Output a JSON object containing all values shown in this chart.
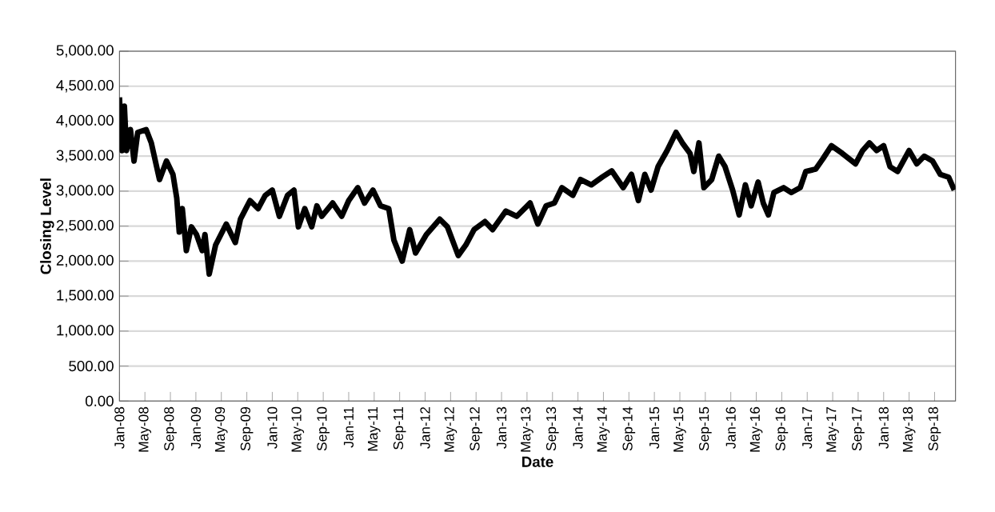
{
  "chart_data": {
    "type": "line",
    "xlabel": "Date",
    "ylabel": "Closing Level",
    "grid": "y",
    "xlim": [
      "2008-01-01",
      "2018-12-10"
    ],
    "xticks": [
      {
        "value": "2008-01",
        "label": "Jan-08"
      },
      {
        "value": "2008-05",
        "label": "May-08"
      },
      {
        "value": "2008-09",
        "label": "Sep-08"
      },
      {
        "value": "2009-01",
        "label": "Jan-09"
      },
      {
        "value": "2009-05",
        "label": "May-09"
      },
      {
        "value": "2009-09",
        "label": "Sep-09"
      },
      {
        "value": "2010-01",
        "label": "Jan-10"
      },
      {
        "value": "2010-05",
        "label": "May-10"
      },
      {
        "value": "2010-09",
        "label": "Sep-10"
      },
      {
        "value": "2011-01",
        "label": "Jan-11"
      },
      {
        "value": "2011-05",
        "label": "May-11"
      },
      {
        "value": "2011-09",
        "label": "Sep-11"
      },
      {
        "value": "2012-01",
        "label": "Jan-12"
      },
      {
        "value": "2012-05",
        "label": "May-12"
      },
      {
        "value": "2012-09",
        "label": "Sep-12"
      },
      {
        "value": "2013-01",
        "label": "Jan-13"
      },
      {
        "value": "2013-05",
        "label": "May-13"
      },
      {
        "value": "2013-09",
        "label": "Sep-13"
      },
      {
        "value": "2014-01",
        "label": "Jan-14"
      },
      {
        "value": "2014-05",
        "label": "May-14"
      },
      {
        "value": "2014-09",
        "label": "Sep-14"
      },
      {
        "value": "2015-01",
        "label": "Jan-15"
      },
      {
        "value": "2015-05",
        "label": "May-15"
      },
      {
        "value": "2015-09",
        "label": "Sep-15"
      },
      {
        "value": "2016-01",
        "label": "Jan-16"
      },
      {
        "value": "2016-05",
        "label": "May-16"
      },
      {
        "value": "2016-09",
        "label": "Sep-16"
      },
      {
        "value": "2017-01",
        "label": "Jan-17"
      },
      {
        "value": "2017-05",
        "label": "May-17"
      },
      {
        "value": "2017-09",
        "label": "Sep-17"
      },
      {
        "value": "2018-01",
        "label": "Jan-18"
      },
      {
        "value": "2018-05",
        "label": "May-18"
      },
      {
        "value": "2018-09",
        "label": "Sep-18"
      }
    ],
    "ylim": [
      0,
      5000
    ],
    "yticks": [
      {
        "value": 0,
        "label": "0.00"
      },
      {
        "value": 500,
        "label": "500.00"
      },
      {
        "value": 1000,
        "label": "1,000.00"
      },
      {
        "value": 1500,
        "label": "1,500.00"
      },
      {
        "value": 2000,
        "label": "2,000.00"
      },
      {
        "value": 2500,
        "label": "2,500.00"
      },
      {
        "value": 3000,
        "label": "3,000.00"
      },
      {
        "value": 3500,
        "label": "3,500.00"
      },
      {
        "value": 4000,
        "label": "4,000.00"
      },
      {
        "value": 4500,
        "label": "4,500.00"
      },
      {
        "value": 5000,
        "label": "5,000.00"
      }
    ],
    "series": [
      {
        "color": "#000000",
        "x": [
          "2008-01-01",
          "2008-01-13",
          "2008-01-25",
          "2008-02-04",
          "2008-02-22",
          "2008-03-10",
          "2008-03-28",
          "2008-05-07",
          "2008-06-01",
          "2008-07-10",
          "2008-08-13",
          "2008-09-13",
          "2008-10-01",
          "2008-10-13",
          "2008-10-28",
          "2008-11-16",
          "2008-12-10",
          "2009-01-04",
          "2009-02-01",
          "2009-02-13",
          "2009-03-04",
          "2009-04-04",
          "2009-05-25",
          "2009-07-07",
          "2009-08-01",
          "2009-09-16",
          "2009-10-25",
          "2009-11-28",
          "2010-01-01",
          "2010-02-04",
          "2010-03-13",
          "2010-04-13",
          "2010-05-04",
          "2010-06-04",
          "2010-07-07",
          "2010-08-01",
          "2010-08-25",
          "2010-10-16",
          "2010-11-28",
          "2011-01-01",
          "2011-02-13",
          "2011-03-16",
          "2011-04-25",
          "2011-06-01",
          "2011-07-10",
          "2011-08-04",
          "2011-09-13",
          "2011-10-19",
          "2011-11-16",
          "2012-01-07",
          "2012-03-10",
          "2012-04-16",
          "2012-06-07",
          "2012-07-13",
          "2012-08-22",
          "2012-10-13",
          "2012-11-19",
          "2013-01-22",
          "2013-03-13",
          "2013-05-16",
          "2013-06-22",
          "2013-08-01",
          "2013-09-10",
          "2013-10-16",
          "2013-12-07",
          "2014-01-13",
          "2014-03-04",
          "2014-04-25",
          "2014-06-10",
          "2014-08-04",
          "2014-09-13",
          "2014-10-16",
          "2014-11-16",
          "2014-12-16",
          "2015-01-19",
          "2015-03-01",
          "2015-04-13",
          "2015-05-13",
          "2015-06-19",
          "2015-07-07",
          "2015-08-01",
          "2015-08-25",
          "2015-10-01",
          "2015-11-04",
          "2015-12-04",
          "2016-01-10",
          "2016-02-10",
          "2016-03-10",
          "2016-04-07",
          "2016-05-10",
          "2016-06-04",
          "2016-06-28",
          "2016-07-25",
          "2016-09-10",
          "2016-10-16",
          "2016-11-28",
          "2016-12-25",
          "2017-02-10",
          "2017-03-16",
          "2017-04-25",
          "2017-06-16",
          "2017-08-19",
          "2017-09-22",
          "2017-10-25",
          "2017-11-28",
          "2018-01-01",
          "2018-02-01",
          "2018-03-07",
          "2018-05-01",
          "2018-06-07",
          "2018-07-13",
          "2018-08-22",
          "2018-09-28",
          "2018-11-07",
          "2018-12-04"
        ],
        "values": [
          4340,
          3580,
          4215,
          3580,
          3880,
          3430,
          3840,
          3880,
          3690,
          3165,
          3430,
          3240,
          2900,
          2415,
          2750,
          2150,
          2490,
          2380,
          2150,
          2380,
          1815,
          2230,
          2530,
          2265,
          2600,
          2865,
          2750,
          2940,
          3015,
          2640,
          2940,
          3015,
          2490,
          2750,
          2490,
          2790,
          2640,
          2830,
          2640,
          2865,
          3050,
          2830,
          3015,
          2790,
          2750,
          2300,
          2000,
          2450,
          2115,
          2380,
          2600,
          2490,
          2080,
          2230,
          2450,
          2565,
          2450,
          2715,
          2640,
          2830,
          2530,
          2790,
          2830,
          3050,
          2940,
          3165,
          3090,
          3200,
          3290,
          3050,
          3240,
          2865,
          3240,
          3015,
          3350,
          3580,
          3840,
          3690,
          3540,
          3280,
          3690,
          3050,
          3165,
          3500,
          3350,
          3015,
          2660,
          3090,
          2790,
          3130,
          2830,
          2660,
          2980,
          3050,
          2980,
          3050,
          3280,
          3315,
          3465,
          3650,
          3540,
          3390,
          3580,
          3690,
          3580,
          3650,
          3350,
          3280,
          3580,
          3390,
          3500,
          3430,
          3240,
          3200,
          3015
        ]
      }
    ]
  }
}
